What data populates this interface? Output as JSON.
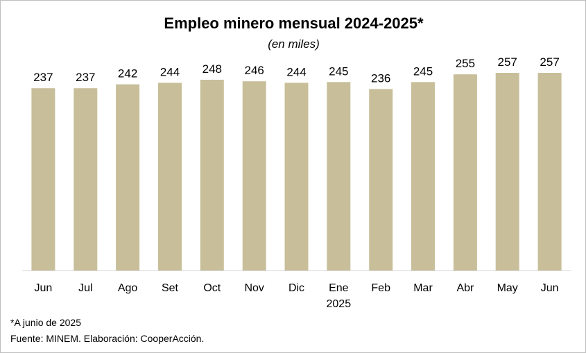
{
  "chart_data": {
    "type": "bar",
    "title": "Empleo minero mensual 2024-2025*",
    "subtitle": "(en miles)",
    "categories": [
      "Jun",
      "Jul",
      "Ago",
      "Set",
      "Oct",
      "Nov",
      "Dic",
      "Ene",
      "Feb",
      "Mar",
      "Abr",
      "May",
      "Jun"
    ],
    "category_sublabels": [
      "",
      "",
      "",
      "",
      "",
      "",
      "",
      "2025",
      "",
      "",
      "",
      "",
      ""
    ],
    "values": [
      237,
      237,
      242,
      244,
      248,
      246,
      244,
      245,
      236,
      245,
      255,
      257,
      257
    ],
    "value_labels": [
      "237",
      "237",
      "242",
      "244",
      "248",
      "246",
      "244",
      "245",
      "236",
      "245",
      "255",
      "257",
      "257"
    ],
    "xlabel": "",
    "ylabel": "",
    "ylim": [
      0,
      257
    ],
    "grid": false,
    "bar_color": "#c8bf9a",
    "axis_color": "#d9d9d9"
  },
  "footnotes": {
    "note": "*A junio de 2025",
    "source": "Fuente: MINEM. Elaboración: CooperAcción."
  }
}
